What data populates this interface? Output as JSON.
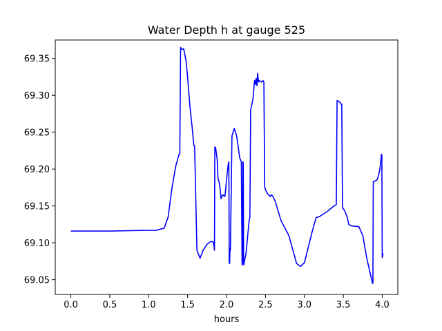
{
  "chart_data": {
    "type": "line",
    "title": "Water Depth h at gauge 525",
    "xlabel": "hours",
    "ylabel": "",
    "xlim": [
      -0.2,
      4.2
    ],
    "ylim": [
      69.03,
      69.375
    ],
    "xticks": [
      0.0,
      0.5,
      1.0,
      1.5,
      2.0,
      2.5,
      3.0,
      3.5,
      4.0
    ],
    "xtick_labels": [
      "0.0",
      "0.5",
      "1.0",
      "1.5",
      "2.0",
      "2.5",
      "3.0",
      "3.5",
      "4.0"
    ],
    "yticks": [
      69.05,
      69.1,
      69.15,
      69.2,
      69.25,
      69.3,
      69.35
    ],
    "ytick_labels": [
      "69.05",
      "69.10",
      "69.15",
      "69.20",
      "69.25",
      "69.30",
      "69.35"
    ],
    "grid": false,
    "series": [
      {
        "color": "#0000ff",
        "x": [
          0.0,
          0.5,
          1.0,
          1.1,
          1.2,
          1.25,
          1.3,
          1.35,
          1.39,
          1.4,
          1.41,
          1.43,
          1.45,
          1.48,
          1.5,
          1.53,
          1.56,
          1.58,
          1.59,
          1.62,
          1.66,
          1.7,
          1.75,
          1.8,
          1.83,
          1.84,
          1.845,
          1.85,
          1.86,
          1.88,
          1.89,
          1.91,
          1.93,
          1.95,
          1.98,
          2.0,
          2.02,
          2.03,
          2.035,
          2.04,
          2.045,
          2.05,
          2.07,
          2.1,
          2.13,
          2.15,
          2.17,
          2.19,
          2.2,
          2.205,
          2.21,
          2.212,
          2.215,
          2.22,
          2.25,
          2.29,
          2.3,
          2.31,
          2.34,
          2.36,
          2.37,
          2.38,
          2.39,
          2.4,
          2.41,
          2.42,
          2.45,
          2.47,
          2.48,
          2.49,
          2.5,
          2.53,
          2.56,
          2.58,
          2.6,
          2.63,
          2.7,
          2.8,
          2.9,
          2.95,
          3.0,
          3.1,
          3.15,
          3.2,
          3.3,
          3.38,
          3.4,
          3.41,
          3.42,
          3.44,
          3.46,
          3.47,
          3.48,
          3.49,
          3.52,
          3.55,
          3.57,
          3.6,
          3.7,
          3.75,
          3.8,
          3.86,
          3.875,
          3.88,
          3.885,
          3.89,
          3.93,
          3.95,
          3.97,
          3.99,
          3.995,
          4.0,
          4.01,
          4.015
        ],
        "y": [
          69.116,
          69.116,
          69.117,
          69.117,
          69.12,
          69.135,
          69.175,
          69.205,
          69.22,
          69.22,
          69.365,
          69.362,
          69.363,
          69.347,
          69.325,
          69.285,
          69.255,
          69.232,
          69.232,
          69.09,
          69.079,
          69.09,
          69.098,
          69.102,
          69.101,
          69.095,
          69.09,
          69.23,
          69.229,
          69.213,
          69.188,
          69.18,
          69.16,
          69.165,
          69.163,
          69.185,
          69.205,
          69.21,
          69.073,
          69.072,
          69.093,
          69.09,
          69.245,
          69.255,
          69.245,
          69.23,
          69.215,
          69.21,
          69.07,
          69.073,
          69.21,
          69.209,
          69.208,
          69.07,
          69.085,
          69.13,
          69.135,
          69.28,
          69.295,
          69.32,
          69.315,
          69.323,
          69.313,
          69.33,
          69.318,
          69.32,
          69.318,
          69.32,
          69.318,
          69.176,
          69.172,
          69.166,
          69.163,
          69.165,
          69.162,
          69.155,
          69.13,
          69.11,
          69.072,
          69.068,
          69.073,
          69.115,
          69.134,
          69.136,
          69.143,
          69.15,
          69.151,
          69.152,
          69.293,
          69.292,
          69.29,
          69.288,
          69.288,
          69.148,
          69.143,
          69.135,
          69.125,
          69.123,
          69.122,
          69.11,
          69.08,
          69.052,
          69.045,
          69.045,
          69.183,
          69.183,
          69.185,
          69.19,
          69.2,
          69.22,
          69.22,
          69.08,
          69.085,
          69.085
        ]
      }
    ]
  }
}
